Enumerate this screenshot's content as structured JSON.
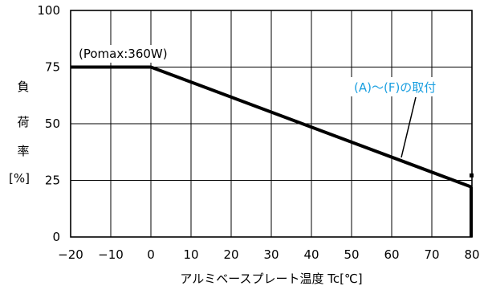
{
  "chart_data": {
    "type": "line",
    "title": "",
    "xlabel": "アルミベースプレート温度 Tc[℃]",
    "ylabel_chars": [
      "負",
      "荷",
      "率",
      "[%]"
    ],
    "xlim": [
      -20,
      80
    ],
    "ylim": [
      0,
      100
    ],
    "xticks": [
      -20,
      -10,
      0,
      10,
      20,
      30,
      40,
      50,
      60,
      70,
      80
    ],
    "yticks": [
      0,
      25,
      50,
      75,
      100
    ],
    "grid": true,
    "series": [
      {
        "name": "",
        "x": [
          -20,
          0,
          80
        ],
        "y": [
          75,
          75,
          22
        ]
      }
    ],
    "annotations": [
      {
        "text": "(Pomax:360W)",
        "color": "#000000"
      },
      {
        "text": "(A)～(F)の取付",
        "color": "#1a9fe0"
      }
    ]
  }
}
